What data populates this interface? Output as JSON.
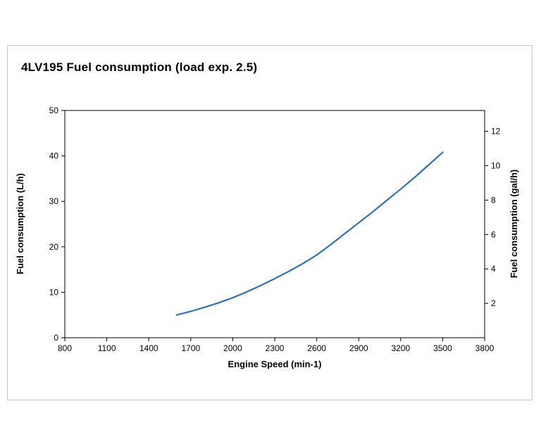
{
  "chart_data": {
    "type": "line",
    "title": "4LV195 Fuel consumption (load exp. 2.5)",
    "xlabel": "Engine Speed (min-1)",
    "ylabel_left": "Fuel consumption (L/h)",
    "ylabel_right": "Fuel consumption (gal/h)",
    "xlim": [
      800,
      3800
    ],
    "xticks": [
      800,
      1100,
      1400,
      1700,
      2000,
      2300,
      2600,
      2900,
      3200,
      3500,
      3800
    ],
    "ylim_left": [
      0,
      50
    ],
    "yticks_left": [
      0,
      10,
      20,
      30,
      40,
      50
    ],
    "yticks_right": [
      2,
      4,
      6,
      8,
      10,
      12
    ],
    "liters_per_gallon": 3.785,
    "grid": "off",
    "legend": "none",
    "series": [
      {
        "name": "Fuel consumption",
        "color": "#2e75b6",
        "x": [
          1600,
          1700,
          1800,
          1900,
          2000,
          2100,
          2200,
          2300,
          2400,
          2500,
          2600,
          2700,
          2800,
          2900,
          3000,
          3100,
          3200,
          3300,
          3400,
          3500
        ],
        "y": [
          5.0,
          5.8,
          6.7,
          7.7,
          8.8,
          10.1,
          11.5,
          13.0,
          14.6,
          16.3,
          18.2,
          20.5,
          22.9,
          25.3,
          27.7,
          30.2,
          32.7,
          35.3,
          38.0,
          40.8
        ]
      }
    ]
  }
}
